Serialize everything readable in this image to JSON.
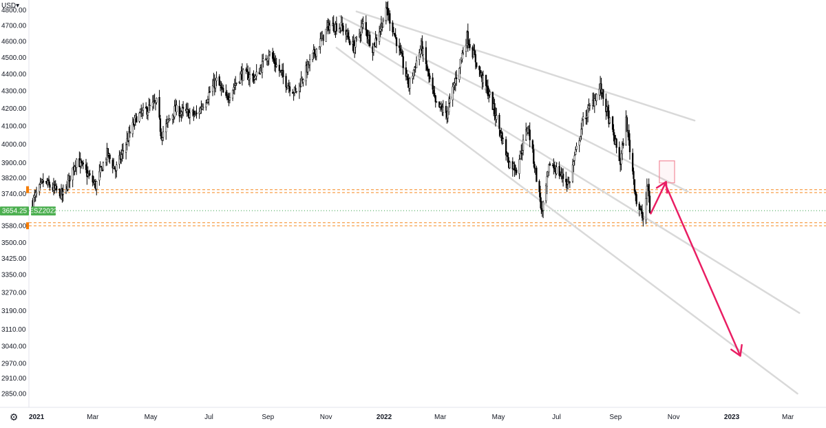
{
  "header": {
    "currency": "USD",
    "currency_caret": "▾"
  },
  "settings_icon": "gear-icon",
  "settings_glyph": "⚙",
  "colors": {
    "candle": "#000000",
    "trendline": "#d9d9d9",
    "level_line": "#f7a04b",
    "price_line": "#2f9e44",
    "badge_bg": "#4caf50",
    "arrow": "#e91e63",
    "target_box": "#f28b9b"
  },
  "price_badge": {
    "value": "3654.25",
    "symbol": "ESZ2022"
  },
  "chart_data": {
    "type": "candlestick",
    "instrument": "ESZ2022",
    "currency": "USD",
    "y_axis": {
      "side": "left",
      "ticks": [
        "4800.00",
        "4700.00",
        "4600.00",
        "4500.00",
        "4400.00",
        "4300.00",
        "4200.00",
        "4100.00",
        "4000.00",
        "3900.00",
        "3820.00",
        "3740.00",
        "3654.25",
        "3580.00",
        "3500.00",
        "3425.00",
        "3350.00",
        "3270.00",
        "3190.00",
        "3110.00",
        "3040.00",
        "2970.00",
        "2910.00",
        "2850.00"
      ],
      "range": [
        2850,
        4820
      ],
      "scale": "log"
    },
    "x_axis": {
      "labels": [
        {
          "date": "2021-01-01",
          "label": "2021",
          "year": true
        },
        {
          "date": "2021-03-01",
          "label": "Mar"
        },
        {
          "date": "2021-05-01",
          "label": "May"
        },
        {
          "date": "2021-07-01",
          "label": "Jul"
        },
        {
          "date": "2021-09-01",
          "label": "Sep"
        },
        {
          "date": "2021-11-01",
          "label": "Nov"
        },
        {
          "date": "2022-01-01",
          "label": "2022",
          "year": true
        },
        {
          "date": "2022-03-01",
          "label": "Mar"
        },
        {
          "date": "2022-05-01",
          "label": "May"
        },
        {
          "date": "2022-07-01",
          "label": "Jul"
        },
        {
          "date": "2022-09-01",
          "label": "Sep"
        },
        {
          "date": "2022-11-01",
          "label": "Nov"
        },
        {
          "date": "2023-01-01",
          "label": "2023",
          "year": true
        },
        {
          "date": "2023-03-01",
          "label": "Mar"
        }
      ],
      "range": [
        "2020-12-24",
        "2023-04-10"
      ]
    },
    "price_path": [
      [
        "2020-12-28",
        3700
      ],
      [
        "2021-01-08",
        3800
      ],
      [
        "2021-01-29",
        3730
      ],
      [
        "2021-02-12",
        3920
      ],
      [
        "2021-03-04",
        3780
      ],
      [
        "2021-03-16",
        3950
      ],
      [
        "2021-03-25",
        3860
      ],
      [
        "2021-04-16",
        4150
      ],
      [
        "2021-05-07",
        4230
      ],
      [
        "2021-05-12",
        4050
      ],
      [
        "2021-05-26",
        4190
      ],
      [
        "2021-06-18",
        4160
      ],
      [
        "2021-07-09",
        4360
      ],
      [
        "2021-07-19",
        4250
      ],
      [
        "2021-08-04",
        4400
      ],
      [
        "2021-08-19",
        4380
      ],
      [
        "2021-09-02",
        4530
      ],
      [
        "2021-09-20",
        4350
      ],
      [
        "2021-09-30",
        4290
      ],
      [
        "2021-10-21",
        4540
      ],
      [
        "2021-11-04",
        4700
      ],
      [
        "2021-11-18",
        4690
      ],
      [
        "2021-11-30",
        4560
      ],
      [
        "2021-12-10",
        4710
      ],
      [
        "2021-12-20",
        4560
      ],
      [
        "2022-01-04",
        4800
      ],
      [
        "2022-01-14",
        4600
      ],
      [
        "2022-01-27",
        4330
      ],
      [
        "2022-02-09",
        4570
      ],
      [
        "2022-02-24",
        4220
      ],
      [
        "2022-03-08",
        4170
      ],
      [
        "2022-03-29",
        4630
      ],
      [
        "2022-04-12",
        4400
      ],
      [
        "2022-04-22",
        4270
      ],
      [
        "2022-05-12",
        3900
      ],
      [
        "2022-05-20",
        3870
      ],
      [
        "2022-06-01",
        4100
      ],
      [
        "2022-06-16",
        3640
      ],
      [
        "2022-06-24",
        3900
      ],
      [
        "2022-07-14",
        3790
      ],
      [
        "2022-07-29",
        4130
      ],
      [
        "2022-08-16",
        4320
      ],
      [
        "2022-09-06",
        3900
      ],
      [
        "2022-09-12",
        4130
      ],
      [
        "2022-09-23",
        3700
      ],
      [
        "2022-09-30",
        3610
      ],
      [
        "2022-10-05",
        3790
      ],
      [
        "2022-10-07",
        3654.25
      ]
    ],
    "trendlines": [
      {
        "name": "upper-channel",
        "from": [
          "2021-12-03",
          4790
        ],
        "to": [
          "2022-11-23",
          4130
        ]
      },
      {
        "name": "mid-channel-1",
        "from": [
          "2021-11-15",
          4760
        ],
        "to": [
          "2022-11-16",
          3750
        ]
      },
      {
        "name": "mid-channel-2",
        "from": [
          "2021-11-29",
          4630
        ],
        "to": [
          "2023-03-13",
          3180
        ]
      },
      {
        "name": "lower-channel",
        "from": [
          "2021-11-12",
          4560
        ],
        "to": [
          "2023-03-11",
          2850
        ]
      }
    ],
    "horizontal_levels": [
      3760,
      3745,
      3595,
      3580
    ],
    "last_price": 3654.25,
    "projection": {
      "target_zone": {
        "from": "2022-10-17",
        "to": "2022-11-02",
        "high": 3910,
        "low": 3795
      },
      "arrows": [
        {
          "from": [
            "2022-10-08",
            3640
          ],
          "to": [
            "2022-10-24",
            3800
          ]
        },
        {
          "from": [
            "2022-10-24",
            3780
          ],
          "to": [
            "2023-01-10",
            3000
          ]
        }
      ]
    }
  }
}
